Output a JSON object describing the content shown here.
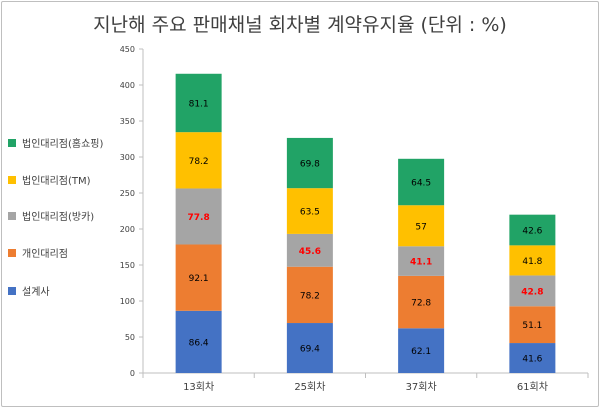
{
  "title": "지난해 주요 판매채널 회차별 계약유지율 (단위 : %)",
  "chart_data": {
    "type": "bar",
    "stacked": true,
    "categories": [
      "13회차",
      "25회차",
      "37회차",
      "61회차"
    ],
    "series": [
      {
        "name": "설계사",
        "color": "#4472c4",
        "values": [
          86.4,
          69.4,
          62.1,
          41.6
        ],
        "label_color": "#000000"
      },
      {
        "name": "개인대리점",
        "color": "#ed7d31",
        "values": [
          92.1,
          78.2,
          72.8,
          51.1
        ],
        "label_color": "#000000"
      },
      {
        "name": "법인대리점(방카)",
        "color": "#a5a5a5",
        "values": [
          77.8,
          45.6,
          41.1,
          42.8
        ],
        "label_color": "#ff0000"
      },
      {
        "name": "법인대리점(TM)",
        "color": "#ffc000",
        "values": [
          78.2,
          63.5,
          57,
          41.8
        ],
        "label_color": "#000000"
      },
      {
        "name": "법인대리점(홈쇼핑)",
        "color": "#21a366",
        "values": [
          81.1,
          69.8,
          64.5,
          42.6
        ],
        "label_color": "#000000"
      }
    ],
    "legend_order": [
      "법인대리점(홈쇼핑)",
      "법인대리점(TM)",
      "법인대리점(방카)",
      "개인대리점",
      "설계사"
    ],
    "y_ticks": [
      0,
      50,
      100,
      150,
      200,
      250,
      300,
      350,
      400,
      450
    ],
    "ylim": [
      0,
      450
    ],
    "grid": false,
    "legend_position": "left"
  }
}
